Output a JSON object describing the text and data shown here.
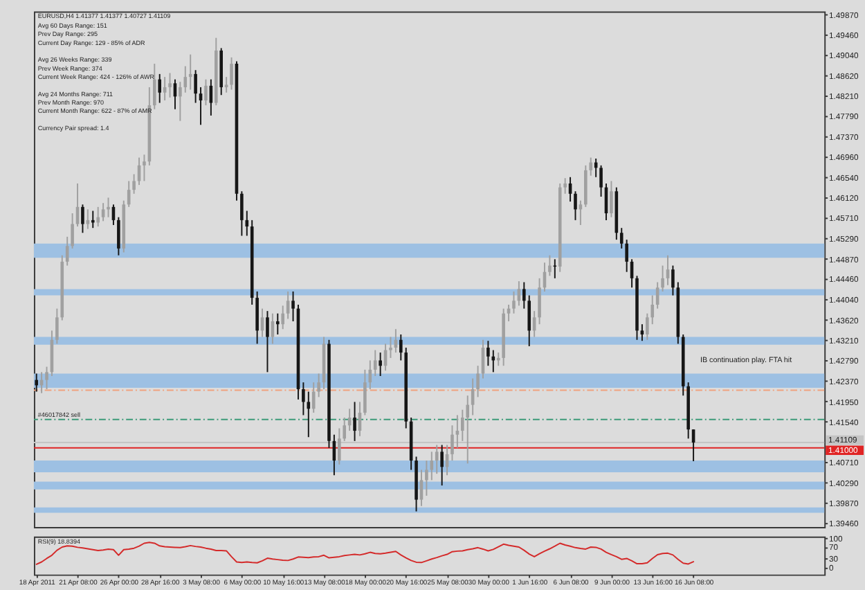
{
  "chart_data": [
    {
      "type": "candlestick",
      "title": "EURUSD,H4 1.41377 1.41377 1.40727 1.41109",
      "annotations": [
        "Avg 60 Days Range: 151\nPrev Day Range: 295\nCurrent Day Range: 129 - 85% of ADR",
        "Avg 26 Weeks Range: 339\nPrev Week Range: 374\nCurrent Week Range: 424 - 126% of AWR",
        "Avg 24 Months Range: 711\nPrev Month Range: 970\nCurrent Month Range: 622 - 87% of AMR",
        "Currency Pair spread: 1.4",
        "IB continuation play. FTA hit"
      ],
      "categories": [
        null,
        null,
        null,
        null,
        null,
        null,
        null,
        null,
        null,
        null,
        null,
        null,
        null,
        null,
        null,
        null,
        null,
        null,
        null,
        null,
        null,
        null,
        null,
        null,
        null,
        null,
        null,
        null,
        null,
        null,
        null,
        null,
        null,
        null,
        null,
        null,
        null,
        null,
        null,
        null,
        null,
        null,
        null,
        null,
        null,
        null,
        null,
        null,
        null,
        null,
        null,
        null,
        null,
        null,
        null,
        null,
        null,
        null,
        null,
        null,
        null,
        null,
        null,
        null,
        null,
        null,
        null,
        null,
        null,
        null,
        null,
        null,
        null,
        null,
        null,
        null,
        null,
        null,
        null,
        null,
        null,
        null,
        null,
        null,
        null,
        null,
        null,
        null,
        null,
        null,
        null,
        null,
        null,
        null,
        null,
        null,
        null,
        null,
        null,
        null,
        null,
        null,
        null,
        null,
        null,
        null,
        null,
        null,
        null,
        null,
        null,
        null,
        null,
        null,
        null,
        null,
        null,
        null,
        null,
        null,
        null,
        null,
        null,
        null,
        null,
        null,
        null,
        null,
        null,
        null,
        null,
        null,
        null,
        null,
        null,
        null,
        null,
        null,
        null,
        null,
        null,
        null,
        null,
        null,
        null,
        null,
        null,
        null,
        null,
        null,
        null,
        null,
        null,
        null
      ],
      "ohlc": [
        [
          1.4239,
          1.4252,
          1.4215,
          1.4228
        ],
        [
          1.4228,
          1.4255,
          1.4212,
          1.4239
        ],
        [
          1.4239,
          1.4266,
          1.422,
          1.4255
        ],
        [
          1.4255,
          1.434,
          1.4247,
          1.4321
        ],
        [
          1.4321,
          1.4385,
          1.4313,
          1.4367
        ],
        [
          1.4367,
          1.4494,
          1.4361,
          1.4481
        ],
        [
          1.4481,
          1.4532,
          1.4473,
          1.4513
        ],
        [
          1.4513,
          1.458,
          1.4508,
          1.4558
        ],
        [
          1.4558,
          1.4641,
          1.4553,
          1.4593
        ],
        [
          1.4593,
          1.4598,
          1.454,
          1.4558
        ],
        [
          1.4558,
          1.4588,
          1.4548,
          1.4566
        ],
        [
          1.4566,
          1.4585,
          1.455,
          1.4561
        ],
        [
          1.4561,
          1.4593,
          1.4553,
          1.4572
        ],
        [
          1.4572,
          1.4601,
          1.4564,
          1.4588
        ],
        [
          1.4588,
          1.4612,
          1.4572,
          1.4593
        ],
        [
          1.4593,
          1.4598,
          1.4556,
          1.4566
        ],
        [
          1.4566,
          1.4572,
          1.4494,
          1.4508
        ],
        [
          1.4508,
          1.4606,
          1.45,
          1.4598
        ],
        [
          1.4598,
          1.4646,
          1.4593,
          1.4628
        ],
        [
          1.4628,
          1.466,
          1.462,
          1.4646
        ],
        [
          1.4646,
          1.4694,
          1.4638,
          1.4678
        ],
        [
          1.4678,
          1.47,
          1.4646,
          1.4686
        ],
        [
          1.4686,
          1.4838,
          1.4678,
          1.4801
        ],
        [
          1.4801,
          1.4886,
          1.4793,
          1.4854
        ],
        [
          1.4854,
          1.4865,
          1.4806,
          1.4827
        ],
        [
          1.4827,
          1.4859,
          1.4811,
          1.4838
        ],
        [
          1.4838,
          1.4867,
          1.4817,
          1.4846
        ],
        [
          1.4846,
          1.4854,
          1.4793,
          1.4819
        ],
        [
          1.4819,
          1.4849,
          1.4769,
          1.4838
        ],
        [
          1.4838,
          1.4881,
          1.4827,
          1.4859
        ],
        [
          1.4859,
          1.4905,
          1.4833,
          1.4865
        ],
        [
          1.4865,
          1.4873,
          1.4806,
          1.4825
        ],
        [
          1.4825,
          1.4838,
          1.4761,
          1.4811
        ],
        [
          1.4811,
          1.4854,
          1.4801,
          1.4841
        ],
        [
          1.4841,
          1.4854,
          1.478,
          1.4806
        ],
        [
          1.4806,
          1.4939,
          1.4801,
          1.4913
        ],
        [
          1.4913,
          1.4918,
          1.4822,
          1.4838
        ],
        [
          1.4838,
          1.4859,
          1.4827,
          1.4843
        ],
        [
          1.4843,
          1.4899,
          1.4833,
          1.4886
        ],
        [
          1.4886,
          1.4891,
          1.4606,
          1.462
        ],
        [
          1.462,
          1.4625,
          1.4534,
          1.4566
        ],
        [
          1.4566,
          1.4585,
          1.4534,
          1.4553
        ],
        [
          1.4553,
          1.4566,
          1.4393,
          1.4407
        ],
        [
          1.4407,
          1.442,
          1.4313,
          1.434
        ],
        [
          1.434,
          1.4385,
          1.4327,
          1.4367
        ],
        [
          1.4367,
          1.438,
          1.4255,
          1.4327
        ],
        [
          1.4327,
          1.4375,
          1.4313,
          1.4359
        ],
        [
          1.4359,
          1.4375,
          1.4332,
          1.4353
        ],
        [
          1.4353,
          1.4391,
          1.4343,
          1.4375
        ],
        [
          1.4375,
          1.442,
          1.4364,
          1.4401
        ],
        [
          1.4401,
          1.442,
          1.4359,
          1.4385
        ],
        [
          1.4385,
          1.4393,
          1.4199,
          1.422
        ],
        [
          1.422,
          1.4234,
          1.4167,
          1.4194
        ],
        [
          1.4194,
          1.4215,
          1.4122,
          1.418
        ],
        [
          1.418,
          1.4234,
          1.4172,
          1.4215
        ],
        [
          1.4215,
          1.4252,
          1.4204,
          1.4234
        ],
        [
          1.4234,
          1.4327,
          1.422,
          1.4313
        ],
        [
          1.4313,
          1.4321,
          1.41,
          1.4114
        ],
        [
          1.4114,
          1.4127,
          1.4044,
          1.4074
        ],
        [
          1.4074,
          1.414,
          1.4066,
          1.4119
        ],
        [
          1.4119,
          1.4162,
          1.4114,
          1.4146
        ],
        [
          1.4146,
          1.418,
          1.4135,
          1.4162
        ],
        [
          1.4162,
          1.4194,
          1.4114,
          1.4135
        ],
        [
          1.4135,
          1.4194,
          1.4124,
          1.4172
        ],
        [
          1.4172,
          1.426,
          1.4167,
          1.4234
        ],
        [
          1.4234,
          1.4279,
          1.422,
          1.426
        ],
        [
          1.426,
          1.43,
          1.4247,
          1.4279
        ],
        [
          1.4279,
          1.4295,
          1.4247,
          1.4268
        ],
        [
          1.4268,
          1.4313,
          1.4258,
          1.43
        ],
        [
          1.43,
          1.4327,
          1.4284,
          1.4305
        ],
        [
          1.4305,
          1.4343,
          1.4295,
          1.4321
        ],
        [
          1.4321,
          1.4332,
          1.4279,
          1.4295
        ],
        [
          1.4295,
          1.4305,
          1.414,
          1.4154
        ],
        [
          1.4154,
          1.4162,
          1.4055,
          1.4074
        ],
        [
          1.4074,
          1.4082,
          1.397,
          1.3994
        ],
        [
          1.3994,
          1.4055,
          1.3981,
          1.4034
        ],
        [
          1.4034,
          1.4074,
          1.4002,
          1.4055
        ],
        [
          1.4055,
          1.4092,
          1.4034,
          1.4074
        ],
        [
          1.4074,
          1.4106,
          1.4047,
          1.4092
        ],
        [
          1.4092,
          1.4106,
          1.4023,
          1.4061
        ],
        [
          1.4061,
          1.4106,
          1.4044,
          1.4087
        ],
        [
          1.4087,
          1.4146,
          1.4074,
          1.4127
        ],
        [
          1.4127,
          1.4167,
          1.41,
          1.4135
        ],
        [
          1.4135,
          1.4178,
          1.4114,
          1.4162
        ],
        [
          1.4162,
          1.4207,
          1.4068,
          1.4188
        ],
        [
          1.4188,
          1.4242,
          1.4167,
          1.422
        ],
        [
          1.422,
          1.4268,
          1.4204,
          1.4252
        ],
        [
          1.4252,
          1.4321,
          1.4242,
          1.4305
        ],
        [
          1.4305,
          1.4319,
          1.4268,
          1.4287
        ],
        [
          1.4287,
          1.43,
          1.4255,
          1.4279
        ],
        [
          1.4279,
          1.4295,
          1.4268,
          1.4284
        ],
        [
          1.4284,
          1.4385,
          1.4268,
          1.4375
        ],
        [
          1.4375,
          1.4393,
          1.4359,
          1.4385
        ],
        [
          1.4385,
          1.442,
          1.4375,
          1.4401
        ],
        [
          1.4401,
          1.4441,
          1.4391,
          1.4425
        ],
        [
          1.4425,
          1.4439,
          1.4385,
          1.4401
        ],
        [
          1.4401,
          1.4412,
          1.4308,
          1.434
        ],
        [
          1.434,
          1.438,
          1.4327,
          1.4367
        ],
        [
          1.4367,
          1.4447,
          1.4353,
          1.4428
        ],
        [
          1.4428,
          1.4479,
          1.442,
          1.446
        ],
        [
          1.446,
          1.4494,
          1.4452,
          1.4473
        ],
        [
          1.4473,
          1.4486,
          1.4447,
          1.4471
        ],
        [
          1.4471,
          1.4641,
          1.446,
          1.4633
        ],
        [
          1.4633,
          1.4652,
          1.462,
          1.4641
        ],
        [
          1.4641,
          1.4654,
          1.4604,
          1.462
        ],
        [
          1.462,
          1.4625,
          1.4566,
          1.4588
        ],
        [
          1.4588,
          1.4606,
          1.4556,
          1.4598
        ],
        [
          1.4598,
          1.4678,
          1.4593,
          1.4668
        ],
        [
          1.4668,
          1.4694,
          1.4657,
          1.4684
        ],
        [
          1.4684,
          1.4692,
          1.4654,
          1.4673
        ],
        [
          1.4673,
          1.4678,
          1.4614,
          1.4633
        ],
        [
          1.4633,
          1.4641,
          1.4566,
          1.458
        ],
        [
          1.458,
          1.4646,
          1.4572,
          1.4625
        ],
        [
          1.4625,
          1.4633,
          1.4526,
          1.454
        ],
        [
          1.454,
          1.455,
          1.4508,
          1.4518
        ],
        [
          1.4518,
          1.4526,
          1.446,
          1.4481
        ],
        [
          1.4481,
          1.4486,
          1.4428,
          1.4447
        ],
        [
          1.4447,
          1.4452,
          1.4321,
          1.434
        ],
        [
          1.434,
          1.4353,
          1.4319,
          1.4332
        ],
        [
          1.4332,
          1.4375,
          1.4321,
          1.4367
        ],
        [
          1.4367,
          1.4412,
          1.4353,
          1.4393
        ],
        [
          1.4393,
          1.4439,
          1.4385,
          1.4428
        ],
        [
          1.4428,
          1.4473,
          1.442,
          1.4447
        ],
        [
          1.4447,
          1.4494,
          1.4433,
          1.4465
        ],
        [
          1.4465,
          1.4473,
          1.4412,
          1.4428
        ],
        [
          1.4428,
          1.4439,
          1.4313,
          1.4327
        ],
        [
          1.4327,
          1.4332,
          1.4207,
          1.4226
        ],
        [
          1.4226,
          1.4234,
          1.4119,
          1.41377
        ],
        [
          1.41377,
          1.41377,
          1.40727,
          1.41109
        ],
        null,
        null,
        null,
        null,
        null,
        null,
        null,
        null,
        null,
        null,
        null,
        null,
        null,
        null,
        null,
        null,
        null,
        null,
        null,
        null,
        null,
        null,
        null,
        null,
        null
      ],
      "colors": [
        "#161616",
        "#a0a0a0",
        "#a0a0a0",
        "#a0a0a0",
        "#a0a0a0",
        "#a0a0a0",
        "#a0a0a0",
        "#a0a0a0",
        "#a0a0a0",
        "#161616",
        "#a0a0a0",
        "#161616",
        "#a0a0a0",
        "#a0a0a0",
        "#a0a0a0",
        "#161616",
        "#161616",
        "#a0a0a0",
        "#a0a0a0",
        "#a0a0a0",
        "#a0a0a0",
        "#a0a0a0",
        "#a0a0a0",
        "#a0a0a0",
        "#161616",
        "#a0a0a0",
        "#a0a0a0",
        "#161616",
        "#a0a0a0",
        "#a0a0a0",
        "#a0a0a0",
        "#161616",
        "#161616",
        "#a0a0a0",
        "#161616",
        "#a0a0a0",
        "#161616",
        "#a0a0a0",
        "#a0a0a0",
        "#161616",
        "#161616",
        "#161616",
        "#161616",
        "#161616",
        "#a0a0a0",
        "#161616",
        "#a0a0a0",
        "#161616",
        "#a0a0a0",
        "#a0a0a0",
        "#161616",
        "#161616",
        "#161616",
        "#161616",
        "#a0a0a0",
        "#a0a0a0",
        "#a0a0a0",
        "#161616",
        "#161616",
        "#a0a0a0",
        "#a0a0a0",
        "#a0a0a0",
        "#161616",
        "#a0a0a0",
        "#a0a0a0",
        "#a0a0a0",
        "#a0a0a0",
        "#161616",
        "#a0a0a0",
        "#a0a0a0",
        "#a0a0a0",
        "#161616",
        "#161616",
        "#161616",
        "#161616",
        "#a0a0a0",
        "#a0a0a0",
        "#a0a0a0",
        "#a0a0a0",
        "#161616",
        "#a0a0a0",
        "#a0a0a0",
        "#a0a0a0",
        "#a0a0a0",
        "#a0a0a0",
        "#a0a0a0",
        "#a0a0a0",
        "#a0a0a0",
        "#161616",
        "#161616",
        "#a0a0a0",
        "#a0a0a0",
        "#a0a0a0",
        "#a0a0a0",
        "#a0a0a0",
        "#161616",
        "#161616",
        "#a0a0a0",
        "#a0a0a0",
        "#a0a0a0",
        "#a0a0a0",
        "#161616",
        "#a0a0a0",
        "#a0a0a0",
        "#161616",
        "#161616",
        "#a0a0a0",
        "#a0a0a0",
        "#a0a0a0",
        "#161616",
        "#161616",
        "#161616",
        "#a0a0a0",
        "#161616",
        "#161616",
        "#161616",
        "#161616",
        "#161616",
        "#161616",
        "#a0a0a0",
        "#a0a0a0",
        "#a0a0a0",
        "#a0a0a0",
        "#a0a0a0",
        "#161616",
        "#161616",
        "#161616",
        "#161616",
        "#161616",
        null,
        null,
        null,
        null,
        null,
        null,
        null,
        null,
        null,
        null,
        null,
        null,
        null,
        null,
        null,
        null,
        null,
        null,
        null,
        null,
        null,
        null,
        null,
        null,
        null
      ],
      "ylim": [
        1.3938,
        1.4993
      ],
      "yticks": [
        {
          "value": 1.3946,
          "label": "1.39460"
        },
        {
          "value": 1.3987,
          "label": "1.39870"
        },
        {
          "value": 1.4029,
          "label": "1.40290"
        },
        {
          "value": 1.4071,
          "label": "1.40710"
        },
        {
          "value": 1.4154,
          "label": "1.41540"
        },
        {
          "value": 1.4195,
          "label": "1.41950"
        },
        {
          "value": 1.4237,
          "label": "1.42370"
        },
        {
          "value": 1.4279,
          "label": "1.42790"
        },
        {
          "value": 1.4321,
          "label": "1.43210"
        },
        {
          "value": 1.4362,
          "label": "1.43620"
        },
        {
          "value": 1.4404,
          "label": "1.44040"
        },
        {
          "value": 1.4446,
          "label": "1.44460"
        },
        {
          "value": 1.4487,
          "label": "1.44870"
        },
        {
          "value": 1.4529,
          "label": "1.45290"
        },
        {
          "value": 1.4571,
          "label": "1.45710"
        },
        {
          "value": 1.4612,
          "label": "1.46120"
        },
        {
          "value": 1.4654,
          "label": "1.46540"
        },
        {
          "value": 1.4696,
          "label": "1.46960"
        },
        {
          "value": 1.4737,
          "label": "1.47370"
        },
        {
          "value": 1.4779,
          "label": "1.47790"
        },
        {
          "value": 1.4821,
          "label": "1.48210"
        },
        {
          "value": 1.4862,
          "label": "1.48620"
        },
        {
          "value": 1.4904,
          "label": "1.49040"
        },
        {
          "value": 1.4946,
          "label": "1.49460"
        },
        {
          "value": 1.4987,
          "label": "1.49870"
        }
      ],
      "bands": [
        {
          "axis": "y",
          "from": 1.4489,
          "to": 1.4518,
          "color": "#9dc0e3"
        },
        {
          "axis": "y",
          "from": 1.4412,
          "to": 1.4425,
          "color": "#9dc0e3"
        },
        {
          "axis": "y",
          "from": 1.4311,
          "to": 1.4327,
          "color": "#9dc0e3"
        },
        {
          "axis": "y",
          "from": 1.4223,
          "to": 1.4252,
          "color": "#9dc0e3"
        },
        {
          "axis": "y",
          "from": 1.405,
          "to": 1.4074,
          "color": "#9dc0e3"
        },
        {
          "axis": "y",
          "from": 1.4015,
          "to": 1.4031,
          "color": "#9dc0e3"
        },
        {
          "axis": "y",
          "from": 1.3967,
          "to": 1.3978,
          "color": "#9dc0e3"
        }
      ],
      "ref_lines": [
        {
          "axis": "y",
          "value": 1.4218,
          "color": "#f0a27e",
          "line_style": "dashed"
        },
        {
          "axis": "y",
          "value": 1.4158,
          "label": "#46017842 sell",
          "color": "#3c9a78",
          "line_style": "dashed"
        },
        {
          "axis": "y",
          "value": 1.41109,
          "label": "1.41109",
          "color": "#c4c4c4",
          "line_style": "solid"
        },
        {
          "axis": "y",
          "value": 1.41,
          "label": "1.41000",
          "color": "#e02424",
          "line_style": "solid"
        }
      ],
      "tick_labels": "y"
    },
    {
      "type": "line",
      "title": "RSI(9) 18.8394",
      "categories": [
        "18 Apr 2011",
        null,
        null,
        null,
        null,
        null,
        null,
        null,
        "21 Apr 08:00",
        null,
        null,
        null,
        null,
        null,
        null,
        null,
        "26 Apr 00:00",
        null,
        null,
        null,
        null,
        null,
        null,
        null,
        "28 Apr 16:00",
        null,
        null,
        null,
        null,
        null,
        null,
        null,
        "3 May 08:00",
        null,
        null,
        null,
        null,
        null,
        null,
        null,
        "6 May 00:00",
        null,
        null,
        null,
        null,
        null,
        null,
        null,
        "10 May 16:00",
        null,
        null,
        null,
        null,
        null,
        null,
        null,
        "13 May 08:00",
        null,
        null,
        null,
        null,
        null,
        null,
        null,
        "18 May 00:00",
        null,
        null,
        null,
        null,
        null,
        null,
        null,
        "20 May 16:00",
        null,
        null,
        null,
        null,
        null,
        null,
        null,
        "25 May 08:00",
        null,
        null,
        null,
        null,
        null,
        null,
        null,
        "30 May 00:00",
        null,
        null,
        null,
        null,
        null,
        null,
        null,
        "1 Jun 16:00",
        null,
        null,
        null,
        null,
        null,
        null,
        null,
        "6 Jun 08:00",
        null,
        null,
        null,
        null,
        null,
        null,
        null,
        "9 Jun 00:00",
        null,
        null,
        null,
        null,
        null,
        null,
        null,
        "13 Jun 16:00",
        null,
        null,
        null,
        null,
        null,
        null,
        null,
        "16 Jun 08:00",
        null,
        null,
        null,
        null,
        null,
        null,
        null,
        null,
        null,
        null,
        null,
        null,
        null,
        null,
        null,
        null,
        null,
        null,
        null,
        null,
        null,
        null,
        null,
        null,
        null
      ],
      "series": [
        {
          "color": "#d42a2a",
          "values": [
            10,
            18,
            30,
            41,
            58,
            69,
            73,
            72,
            68,
            66,
            63,
            60,
            57,
            59,
            62,
            60,
            41,
            60,
            62,
            65,
            72,
            82,
            85,
            82,
            73,
            70,
            69,
            68,
            67,
            70,
            74,
            71,
            69,
            65,
            62,
            57,
            57,
            56,
            36,
            18,
            16,
            18,
            16,
            15,
            22,
            31,
            28,
            26,
            24,
            23,
            28,
            35,
            34,
            33,
            35,
            36,
            41,
            32,
            34,
            36,
            40,
            42,
            44,
            42,
            46,
            51,
            47,
            46,
            48,
            51,
            54,
            42,
            32,
            23,
            17,
            16,
            22,
            28,
            33,
            39,
            44,
            53,
            55,
            56,
            60,
            63,
            67,
            62,
            56,
            61,
            70,
            79,
            75,
            72,
            69,
            58,
            45,
            36,
            46,
            55,
            63,
            72,
            82,
            76,
            72,
            67,
            64,
            62,
            69,
            68,
            62,
            51,
            43,
            36,
            27,
            30,
            22,
            12,
            12,
            15,
            30,
            43,
            47,
            48,
            42,
            27,
            14,
            11,
            19,
            null,
            null,
            null,
            null,
            null,
            null,
            null,
            null,
            null,
            null,
            null,
            null,
            null,
            null,
            null,
            null,
            null,
            null,
            null,
            null,
            null,
            null,
            null,
            null,
            null
          ]
        }
      ],
      "ylim": [
        -25,
        105
      ],
      "yticks": [
        100,
        70,
        30,
        0
      ]
    }
  ]
}
